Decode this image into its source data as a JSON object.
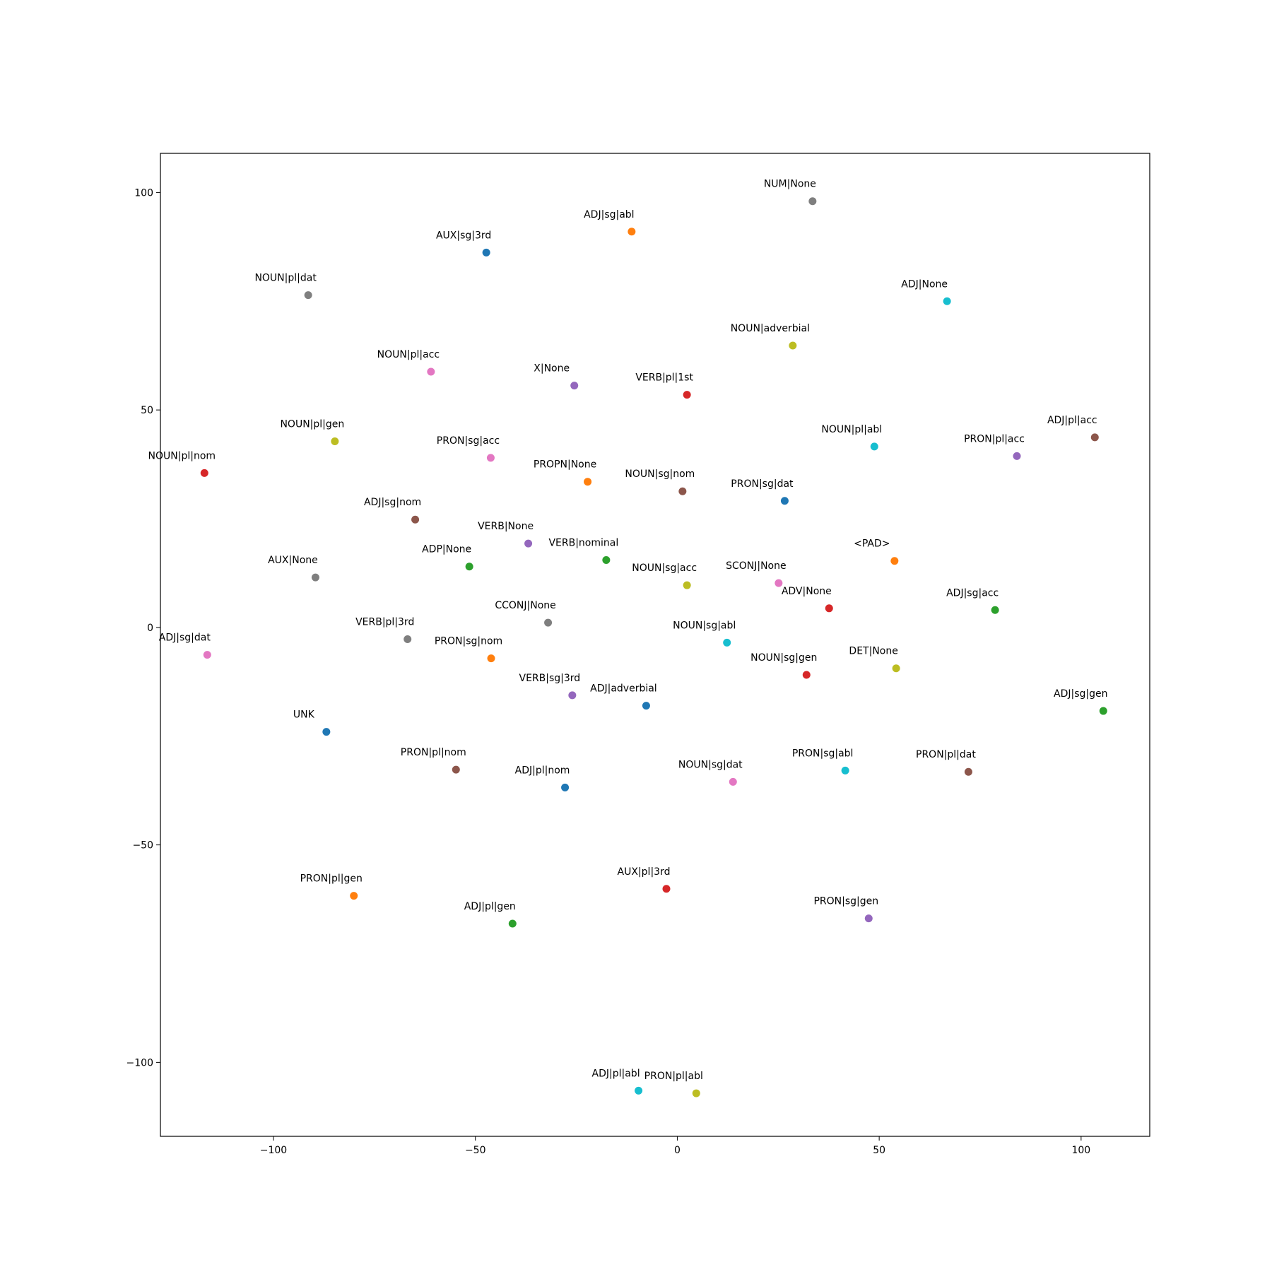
{
  "chart_data": {
    "type": "scatter",
    "title": "",
    "xlabel": "",
    "ylabel": "",
    "xlim": [
      -128,
      117
    ],
    "ylim": [
      -117,
      109
    ],
    "xticks": [
      -100,
      -50,
      0,
      50,
      100
    ],
    "yticks": [
      100,
      50,
      0,
      -50,
      -100
    ],
    "xtick_labels": [
      "−100",
      "−50",
      "0",
      "50",
      "100"
    ],
    "ytick_labels": [
      "100",
      "50",
      "0",
      "−50",
      "−100"
    ],
    "grid": false,
    "legend": "none",
    "palette": [
      "#1f77b4",
      "#ff7f0e",
      "#2ca02c",
      "#d62728",
      "#9467bd",
      "#8c564b",
      "#e377c2",
      "#7f7f7f",
      "#bcbd22",
      "#17becf"
    ],
    "points": [
      {
        "label": "NUM|None",
        "x": 33.5,
        "y": 98,
        "color": "#7f7f7f"
      },
      {
        "label": "ADJ|sg|abl",
        "x": -11.3,
        "y": 91,
        "color": "#ff7f0e"
      },
      {
        "label": "AUX|sg|3rd",
        "x": -47.3,
        "y": 86.2,
        "color": "#1f77b4"
      },
      {
        "label": "NOUN|pl|dat",
        "x": -91.4,
        "y": 76.4,
        "color": "#7f7f7f"
      },
      {
        "label": "ADJ|None",
        "x": 66.8,
        "y": 75,
        "color": "#17becf"
      },
      {
        "label": "NOUN|adverbial",
        "x": 28.6,
        "y": 64.8,
        "color": "#bcbd22"
      },
      {
        "label": "NOUN|pl|acc",
        "x": -61,
        "y": 58.8,
        "color": "#e377c2"
      },
      {
        "label": "X|None",
        "x": -25.5,
        "y": 55.6,
        "color": "#9467bd"
      },
      {
        "label": "VERB|pl|1st",
        "x": 2.4,
        "y": 53.5,
        "color": "#d62728"
      },
      {
        "label": "ADJ|pl|acc",
        "x": 103.4,
        "y": 43.7,
        "color": "#8c564b"
      },
      {
        "label": "NOUN|pl|gen",
        "x": -84.8,
        "y": 42.8,
        "color": "#bcbd22"
      },
      {
        "label": "NOUN|pl|abl",
        "x": 48.8,
        "y": 41.6,
        "color": "#17becf"
      },
      {
        "label": "PRON|pl|acc",
        "x": 84.1,
        "y": 39.4,
        "color": "#9467bd"
      },
      {
        "label": "PRON|sg|acc",
        "x": -46.2,
        "y": 39,
        "color": "#e377c2"
      },
      {
        "label": "NOUN|pl|nom",
        "x": -117.1,
        "y": 35.5,
        "color": "#d62728"
      },
      {
        "label": "PROPN|None",
        "x": -22.2,
        "y": 33.5,
        "color": "#ff7f0e"
      },
      {
        "label": "NOUN|sg|nom",
        "x": 1.3,
        "y": 31.3,
        "color": "#8c564b"
      },
      {
        "label": "PRON|sg|dat",
        "x": 26.6,
        "y": 29.1,
        "color": "#1f77b4"
      },
      {
        "label": "ADJ|sg|nom",
        "x": -64.9,
        "y": 24.8,
        "color": "#8c564b"
      },
      {
        "label": "VERB|None",
        "x": -36.9,
        "y": 19.3,
        "color": "#9467bd"
      },
      {
        "label": "VERB|nominal",
        "x": -17.6,
        "y": 15.5,
        "color": "#2ca02c"
      },
      {
        "label": "<PAD>",
        "x": 53.8,
        "y": 15.3,
        "color": "#ff7f0e"
      },
      {
        "label": "ADP|None",
        "x": -51.5,
        "y": 14,
        "color": "#2ca02c"
      },
      {
        "label": "AUX|None",
        "x": -89.6,
        "y": 11.5,
        "color": "#7f7f7f"
      },
      {
        "label": "SCONJ|None",
        "x": 25.1,
        "y": 10.2,
        "color": "#e377c2"
      },
      {
        "label": "NOUN|sg|acc",
        "x": 2.4,
        "y": 9.7,
        "color": "#bcbd22"
      },
      {
        "label": "ADV|None",
        "x": 37.6,
        "y": 4.4,
        "color": "#d62728"
      },
      {
        "label": "ADJ|sg|acc",
        "x": 78.7,
        "y": 4,
        "color": "#2ca02c"
      },
      {
        "label": "CCONJ|None",
        "x": -32,
        "y": 1.1,
        "color": "#7f7f7f"
      },
      {
        "label": "VERB|pl|3rd",
        "x": -66.8,
        "y": -2.7,
        "color": "#7f7f7f"
      },
      {
        "label": "NOUN|sg|abl",
        "x": 12.3,
        "y": -3.5,
        "color": "#17becf"
      },
      {
        "label": "ADJ|sg|dat",
        "x": -116.4,
        "y": -6.3,
        "color": "#e377c2"
      },
      {
        "label": "PRON|sg|nom",
        "x": -46.1,
        "y": -7.1,
        "color": "#ff7f0e"
      },
      {
        "label": "DET|None",
        "x": 54.2,
        "y": -9.4,
        "color": "#bcbd22"
      },
      {
        "label": "NOUN|sg|gen",
        "x": 32,
        "y": -10.9,
        "color": "#d62728"
      },
      {
        "label": "VERB|sg|3rd",
        "x": -26,
        "y": -15.6,
        "color": "#9467bd"
      },
      {
        "label": "ADJ|adverbial",
        "x": -7.7,
        "y": -18,
        "color": "#1f77b4"
      },
      {
        "label": "ADJ|sg|gen",
        "x": 105.5,
        "y": -19.2,
        "color": "#2ca02c"
      },
      {
        "label": "UNK",
        "x": -86.9,
        "y": -24,
        "color": "#1f77b4"
      },
      {
        "label": "PRON|pl|nom",
        "x": -54.8,
        "y": -32.7,
        "color": "#8c564b"
      },
      {
        "label": "PRON|sg|abl",
        "x": 41.6,
        "y": -32.9,
        "color": "#17becf"
      },
      {
        "label": "PRON|pl|dat",
        "x": 72.1,
        "y": -33.2,
        "color": "#8c564b"
      },
      {
        "label": "NOUN|sg|dat",
        "x": 13.8,
        "y": -35.5,
        "color": "#e377c2"
      },
      {
        "label": "ADJ|pl|nom",
        "x": -27.8,
        "y": -36.8,
        "color": "#1f77b4"
      },
      {
        "label": "AUX|pl|3rd",
        "x": -2.7,
        "y": -60.1,
        "color": "#d62728"
      },
      {
        "label": "PRON|pl|gen",
        "x": -80.1,
        "y": -61.7,
        "color": "#ff7f0e"
      },
      {
        "label": "PRON|sg|gen",
        "x": 47.4,
        "y": -66.9,
        "color": "#9467bd"
      },
      {
        "label": "ADJ|pl|gen",
        "x": -40.8,
        "y": -68.1,
        "color": "#2ca02c"
      },
      {
        "label": "ADJ|pl|abl",
        "x": -9.6,
        "y": -106.5,
        "color": "#17becf"
      },
      {
        "label": "PRON|pl|abl",
        "x": 4.7,
        "y": -107.1,
        "color": "#bcbd22"
      }
    ]
  }
}
